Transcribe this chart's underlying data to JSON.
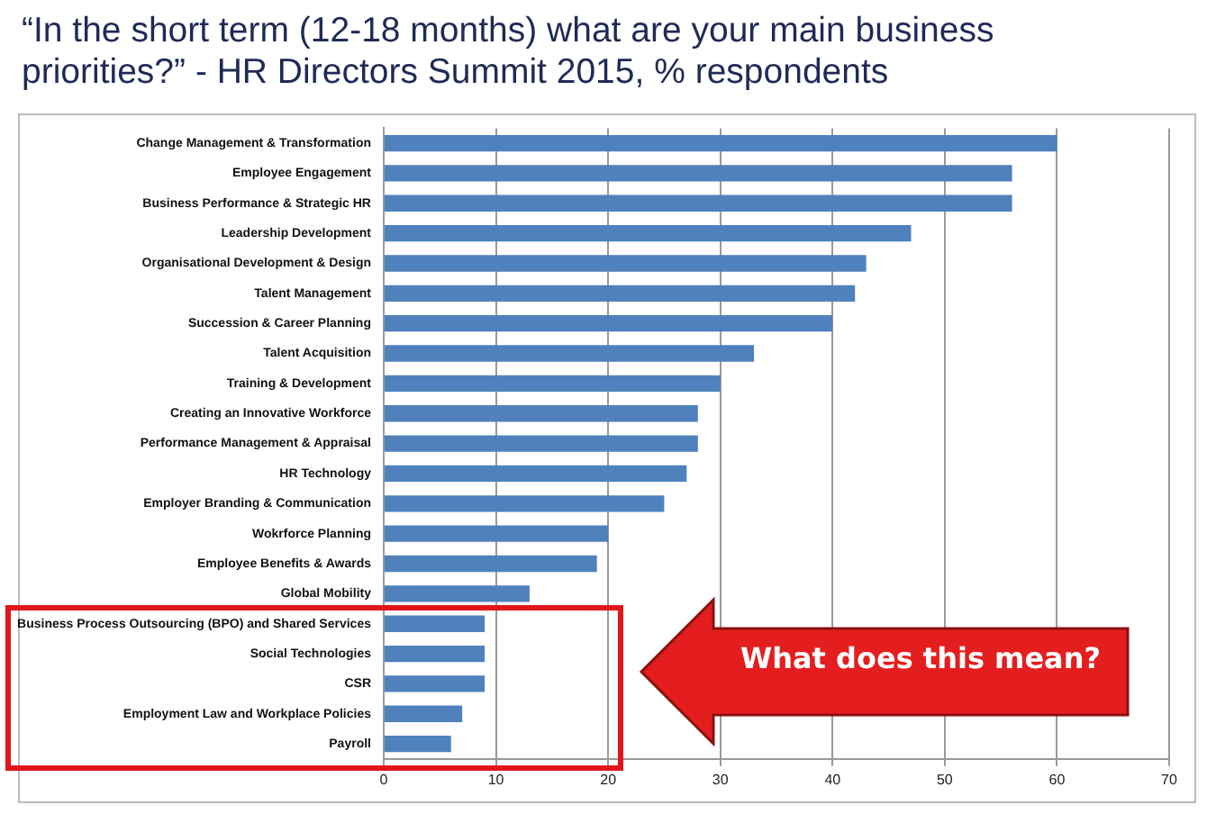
{
  "chart_data": {
    "type": "bar",
    "orientation": "horizontal",
    "title": "“In the short term (12-18 months) what are your main business priorities?”  - HR Directors Summit 2015, % respondents",
    "categories": [
      "Change Management & Transformation",
      "Employee Engagement",
      "Business Performance & Strategic HR",
      "Leadership Development",
      "Organisational Development & Design",
      "Talent Management",
      "Succession & Career Planning",
      "Talent Acquisition",
      "Training & Development",
      "Creating an Innovative Workforce",
      "Performance Management & Appraisal",
      "HR Technology",
      "Employer Branding & Communication",
      "Wokrforce Planning",
      "Employee Benefits & Awards",
      "Global Mobility",
      "Business Process Outsourcing (BPO) and Shared Services",
      "Social Technologies",
      "CSR",
      "Employment Law and Workplace Policies",
      "Payroll"
    ],
    "values": [
      60,
      56,
      56,
      47,
      43,
      42,
      40,
      33,
      30,
      28,
      28,
      27,
      25,
      20,
      19,
      13,
      9,
      9,
      9,
      7,
      6
    ],
    "color": "#4f81bd",
    "xlim": [
      0,
      70
    ],
    "xticks": [
      0,
      10,
      20,
      30,
      40,
      50,
      60,
      70
    ],
    "grid": "x",
    "annotations": [
      "What does this mean?"
    ]
  }
}
